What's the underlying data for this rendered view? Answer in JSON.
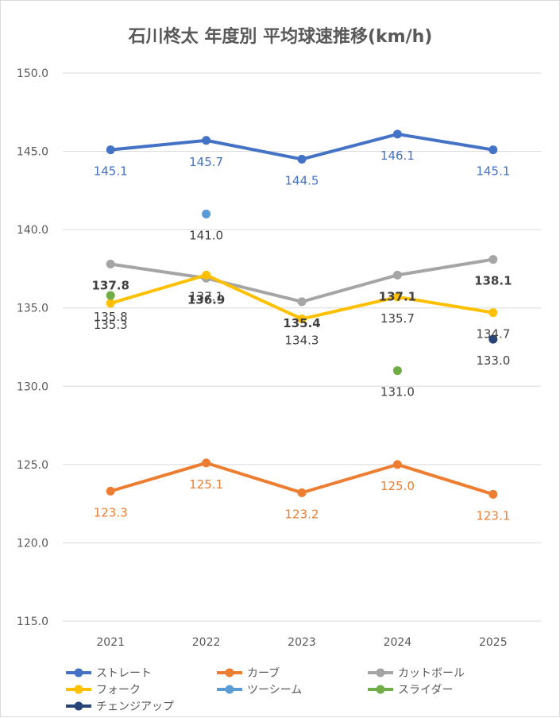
{
  "chart_data": {
    "type": "line",
    "title": "石川柊太 年度別 平均球速推移(km/h)",
    "x": [
      "2021",
      "2022",
      "2023",
      "2024",
      "2025"
    ],
    "y_ticks": [
      "150.0",
      "145.0",
      "140.0",
      "135.0",
      "130.0",
      "125.0",
      "120.0",
      "115.0"
    ],
    "ylim": [
      115,
      150
    ],
    "grid": true,
    "legend_position": "bottom",
    "series": [
      {
        "name": "ストレート",
        "color": "#4472C4",
        "values": [
          145.1,
          145.7,
          144.5,
          146.1,
          145.1
        ],
        "labels": [
          "145.1",
          "145.7",
          "144.5",
          "146.1",
          "145.1"
        ],
        "label_color": "#4472C4",
        "label_bold": false,
        "line": true
      },
      {
        "name": "カーブ",
        "color": "#ED7D31",
        "values": [
          123.3,
          125.1,
          123.2,
          125.0,
          123.1
        ],
        "labels": [
          "123.3",
          "125.1",
          "123.2",
          "125.0",
          "123.1"
        ],
        "label_color": "#ED7D31",
        "label_bold": false,
        "line": true
      },
      {
        "name": "カットボール",
        "color": "#A5A5A5",
        "values": [
          137.8,
          136.9,
          135.4,
          137.1,
          138.1
        ],
        "labels": [
          "137.8",
          "136.9",
          "135.4",
          "137.1",
          "138.1"
        ],
        "label_color": "#404040",
        "label_bold": true,
        "line": true
      },
      {
        "name": "フォーク",
        "color": "#FFC000",
        "values": [
          135.3,
          137.1,
          134.3,
          135.7,
          134.7
        ],
        "labels": [
          "135.3",
          "137.1",
          "134.3",
          "135.7",
          "134.7"
        ],
        "label_color": "#404040",
        "label_bold": false,
        "line": true
      },
      {
        "name": "ツーシーム",
        "color": "#5B9BD5",
        "values": [
          null,
          141.0,
          null,
          null,
          null
        ],
        "labels": [
          null,
          "141.0",
          null,
          null,
          null
        ],
        "label_color": "#404040",
        "label_bold": false,
        "line": false
      },
      {
        "name": "スライダー",
        "color": "#70AD47",
        "values": [
          135.8,
          null,
          null,
          131.0,
          null
        ],
        "labels": [
          "135.8",
          null,
          null,
          "131.0",
          null
        ],
        "label_color": "#404040",
        "label_bold": false,
        "line": false
      },
      {
        "name": "チェンジアップ",
        "color": "#264478",
        "values": [
          null,
          null,
          null,
          null,
          133.0
        ],
        "labels": [
          null,
          null,
          null,
          null,
          "133.0"
        ],
        "label_color": "#404040",
        "label_bold": false,
        "line": false
      }
    ]
  }
}
